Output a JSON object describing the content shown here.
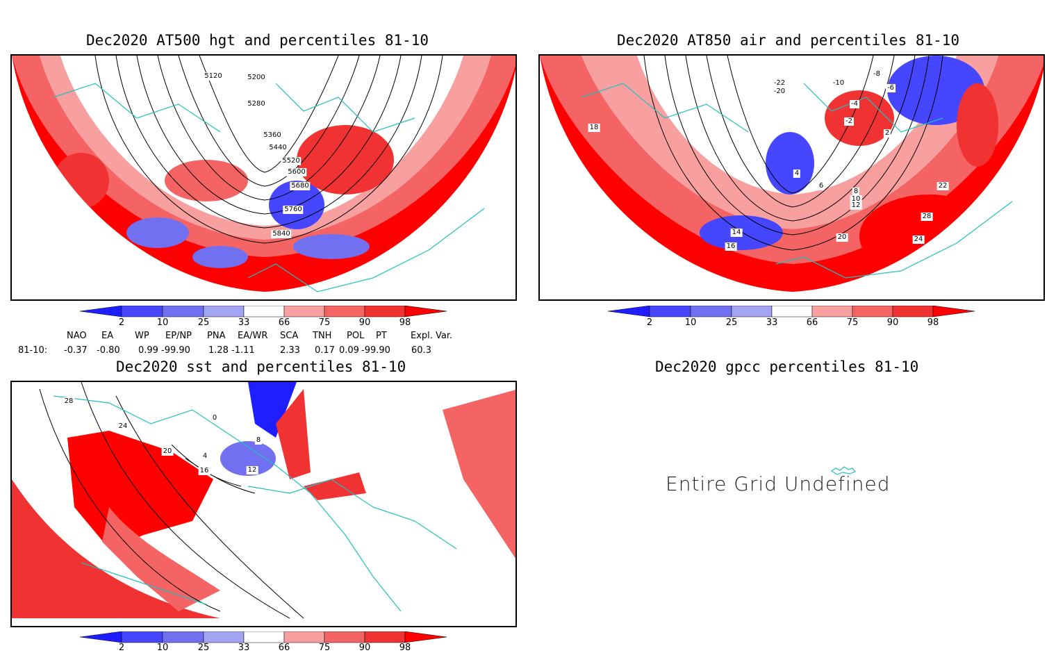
{
  "panels": {
    "hgt": {
      "title": "Dec2020 AT500 hgt and percentiles 81-10",
      "contour_labels": [
        "5120",
        "5200",
        "5280",
        "5360",
        "5440",
        "5520",
        "5600",
        "5680",
        "5760",
        "5840"
      ]
    },
    "air": {
      "title": "Dec2020 AT850 air and percentiles 81-10",
      "contour_labels": [
        "-22",
        "-20",
        "-10",
        "-8",
        "-6",
        "-4",
        "-2",
        "2",
        "4",
        "6",
        "8",
        "10",
        "12",
        "14",
        "16",
        "18",
        "20",
        "22",
        "24",
        "28"
      ]
    },
    "sst": {
      "title": "Dec2020 sst and percentiles 81-10",
      "contour_labels": [
        "28",
        "24",
        "20",
        "16",
        "12",
        "8",
        "4",
        "0"
      ]
    },
    "gpcc": {
      "title": "Dec2020 gpcc percentiles 81-10",
      "message": "Entire Grid Undefined"
    }
  },
  "colorbar": {
    "labels": [
      "2",
      "10",
      "25",
      "33",
      "66",
      "75",
      "90",
      "98"
    ],
    "colors": [
      "#1e1eff",
      "#4646ff",
      "#7070f0",
      "#a4a4f5",
      "#ffffff",
      "#f8a0a0",
      "#f46464",
      "#f03232",
      "#ff0000"
    ]
  },
  "indices": {
    "headers": [
      "NAO",
      "EA",
      "WP",
      "EP/NP",
      "PNA",
      "EA/WR",
      "SCA",
      "TNH",
      "POL",
      "PT",
      "Expl. Var."
    ],
    "row_label": "81-10:",
    "values": [
      "-0.37",
      "-0.80",
      "0.99",
      "-99.90",
      "1.28",
      "-1.11",
      "2.33",
      "0.17",
      "0.09",
      "-99.90",
      "60.3"
    ]
  }
}
